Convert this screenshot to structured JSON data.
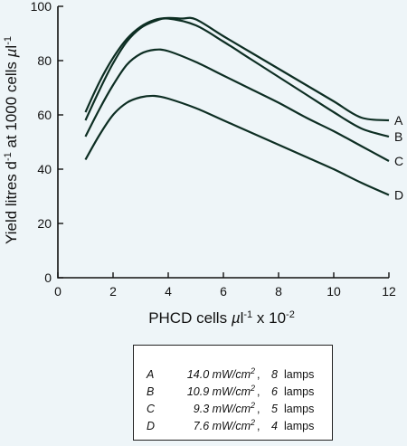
{
  "chart_data": {
    "type": "line",
    "xlabel": "PHCD cells µl⁻¹ x 10⁻²",
    "ylabel": "Yield litres d⁻¹ at 1000 cells µl⁻¹",
    "xlim": [
      0,
      12
    ],
    "ylim": [
      0,
      100
    ],
    "xticks": [
      0,
      2,
      4,
      6,
      8,
      10,
      12
    ],
    "yticks": [
      0,
      20,
      40,
      60,
      80,
      100
    ],
    "grid": false,
    "series": [
      {
        "name": "A",
        "x": [
          1,
          1.5,
          2,
          2.5,
          3,
          3.5,
          4,
          4.5,
          5,
          6,
          7,
          8,
          9,
          10,
          11,
          12
        ],
        "y": [
          61,
          72,
          81,
          88,
          92.5,
          95,
          95.7,
          95.5,
          95.2,
          89,
          83,
          77,
          71,
          65,
          59,
          58
        ]
      },
      {
        "name": "B",
        "x": [
          1,
          1.5,
          2,
          2.5,
          3,
          3.5,
          4,
          5,
          6,
          7,
          8,
          9,
          10,
          11,
          12
        ],
        "y": [
          58,
          69,
          79,
          87,
          92,
          94.5,
          95.5,
          93,
          87,
          80.5,
          74,
          67.5,
          61,
          55,
          52
        ]
      },
      {
        "name": "C",
        "x": [
          1,
          1.5,
          2,
          2.5,
          3,
          3.5,
          4,
          5,
          6,
          7,
          8,
          9,
          10,
          11,
          12
        ],
        "y": [
          52,
          62,
          71,
          78.5,
          82.5,
          84,
          83.5,
          79.5,
          74.5,
          69.5,
          64.5,
          59,
          54,
          48.5,
          43
        ]
      },
      {
        "name": "D",
        "x": [
          1,
          1.5,
          2,
          2.5,
          3,
          3.5,
          4,
          5,
          6,
          7,
          8,
          9,
          10,
          11,
          12
        ],
        "y": [
          43.5,
          52.5,
          60,
          64.5,
          66.5,
          67,
          66,
          62.5,
          58,
          53.5,
          49,
          44.5,
          40,
          35,
          30.5
        ]
      }
    ],
    "legend": {
      "placement": "bottom",
      "entries": [
        {
          "key": "A",
          "irradiance": "14.0 mW/cm",
          "sup": "2",
          "lamps_count": "8",
          "unit": "lamps"
        },
        {
          "key": "B",
          "irradiance": "10.9 mW/cm",
          "sup": "2",
          "lamps_count": "6",
          "unit": "lamps"
        },
        {
          "key": "C",
          "irradiance": "9.3 mW/cm",
          "sup": "2",
          "lamps_count": "5",
          "unit": "lamps"
        },
        {
          "key": "D",
          "irradiance": "7.6 mW/cm",
          "sup": "2",
          "lamps_count": "4",
          "unit": "lamps"
        }
      ]
    }
  },
  "colors": {
    "background": "#eef5f8",
    "line": "#0d2e23"
  }
}
